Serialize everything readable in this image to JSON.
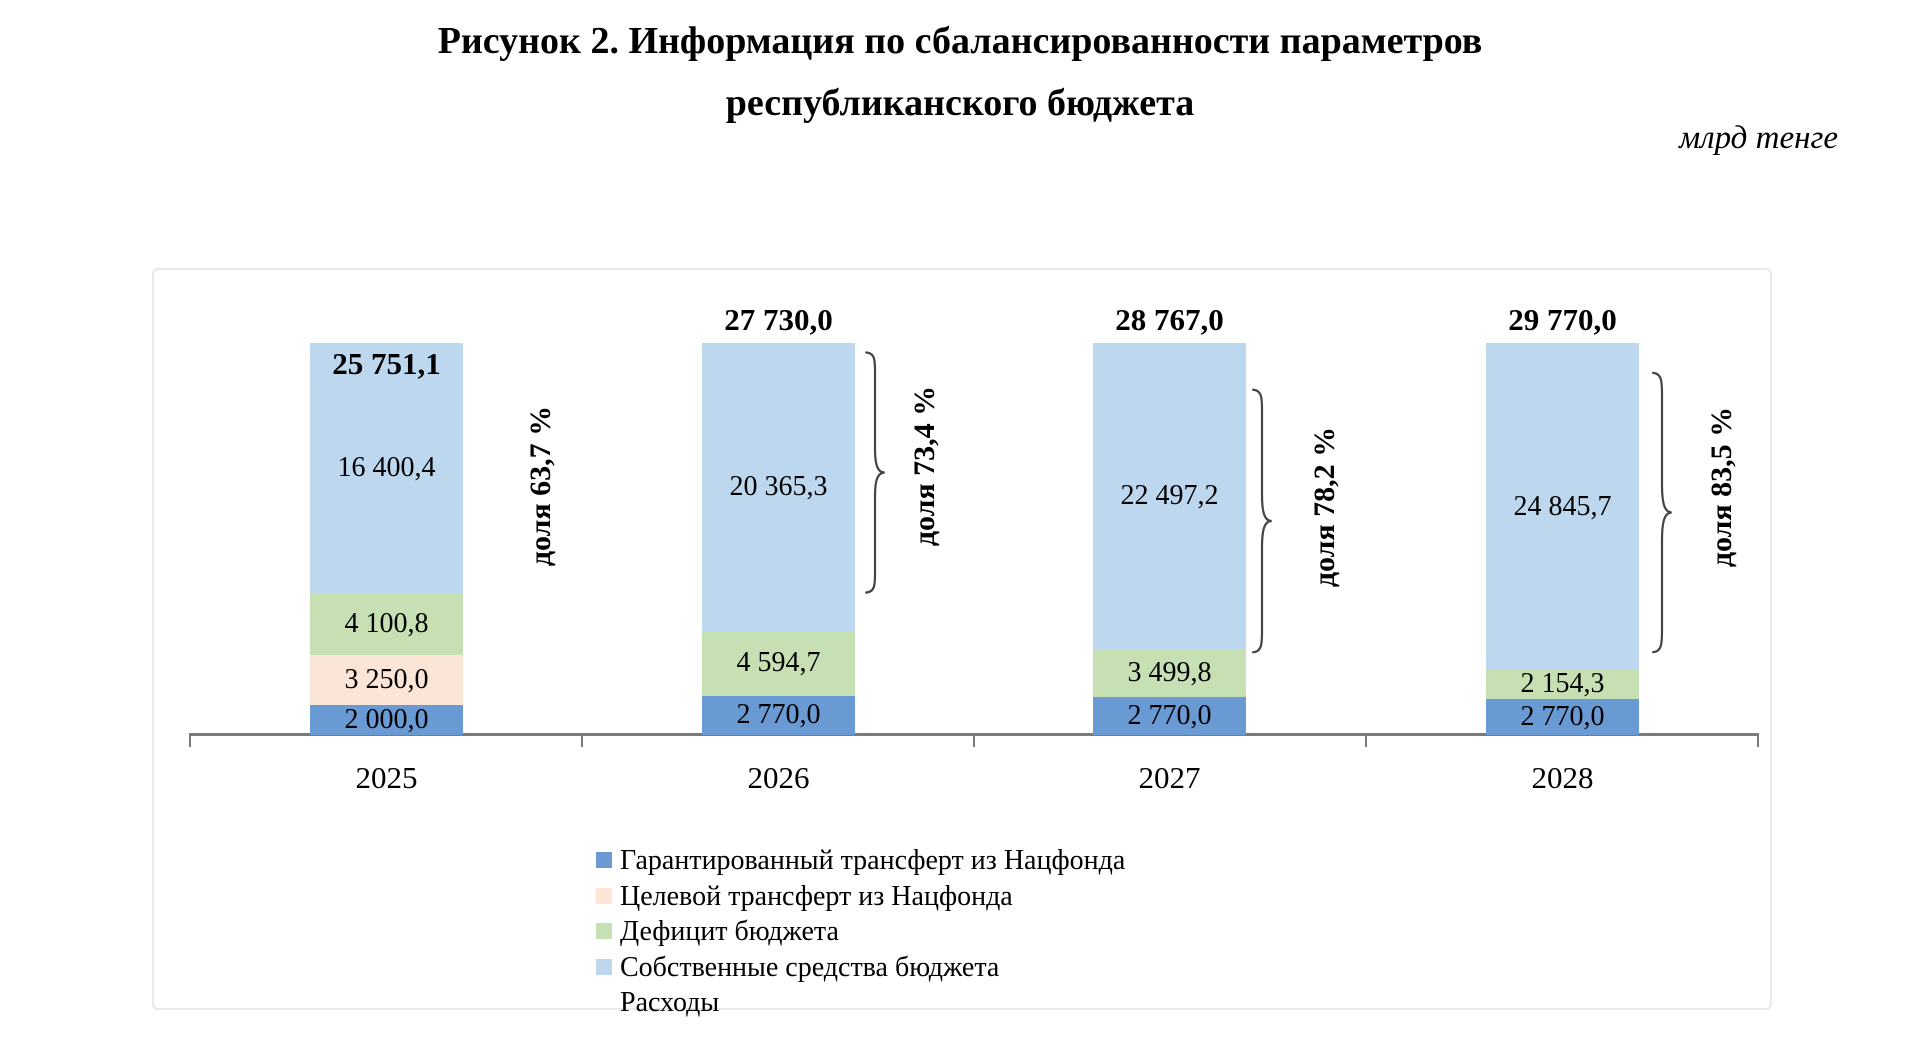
{
  "title": "Рисунок 2. Информация по сбалансированности параметров\nреспубликанского бюджета",
  "unit_label": "млрд тенге",
  "chart_data": {
    "type": "bar",
    "variant": "100_percent_stacked_with_absolute_value_labels",
    "unit": "млрд тенге",
    "categories": [
      "2025",
      "2026",
      "2027",
      "2028"
    ],
    "series": [
      {
        "key": "guaranteed_transfer",
        "name": "Гарантированный трансферт из Нацфонда",
        "color": "#6a9ad3",
        "values": [
          2000.0,
          2770.0,
          2770.0,
          2770.0
        ],
        "labels": [
          "2 000,0",
          "2 770,0",
          "2 770,0",
          "2 770,0"
        ]
      },
      {
        "key": "targeted_transfer",
        "name": "Целевой трансферт из Нацфонда",
        "color": "#fbe5d6",
        "values": [
          3250.0,
          0,
          0,
          0
        ],
        "labels": [
          "3 250,0",
          "",
          "",
          ""
        ]
      },
      {
        "key": "deficit",
        "name": "Дефицит бюджета",
        "color": "#c6e0b4",
        "values": [
          4100.8,
          4594.7,
          3499.8,
          2154.3
        ],
        "labels": [
          "4 100,8",
          "4 594,7",
          "3 499,8",
          "2 154,3"
        ]
      },
      {
        "key": "own_funds",
        "name": "Собственные средства бюджета",
        "color": "#bdd7ee",
        "values": [
          16400.4,
          20365.3,
          22497.2,
          24845.7
        ],
        "labels": [
          "16 400,4",
          "20 365,3",
          "22 497,2",
          "24 845,7"
        ]
      }
    ],
    "totals": {
      "name": "Расходы",
      "values": [
        25751.1,
        27730.0,
        28767.0,
        29770.0
      ],
      "labels": [
        "25 751,1",
        "27 730,0",
        "28 767,0",
        "29 770,0"
      ]
    },
    "share_labels": [
      "доля 63,7 %",
      "доля 73,4 %",
      "доля 78,2 %",
      "доля 83,5 %"
    ],
    "braces_on_own_funds": [
      false,
      true,
      true,
      true
    ],
    "axis": {
      "y_axis_visible": false,
      "gridlines": false,
      "x_labels_visible": true
    }
  },
  "legend": {
    "items": [
      {
        "label": "Гарантированный трансферт из Нацфонда",
        "swatch": "#6a9ad3"
      },
      {
        "label": "Целевой трансферт из Нацфонда",
        "swatch": "#fbe5d6"
      },
      {
        "label": "Дефицит бюджета",
        "swatch": "#c6e0b4"
      },
      {
        "label": "Собственные средства бюджета",
        "swatch": "#bdd7ee"
      },
      {
        "label": "Расходы",
        "swatch": null
      }
    ]
  },
  "colors": {
    "axis": "#7b7b7b",
    "chart_border": "#e9e9e9",
    "brace": "#444444",
    "text": "#000000"
  }
}
